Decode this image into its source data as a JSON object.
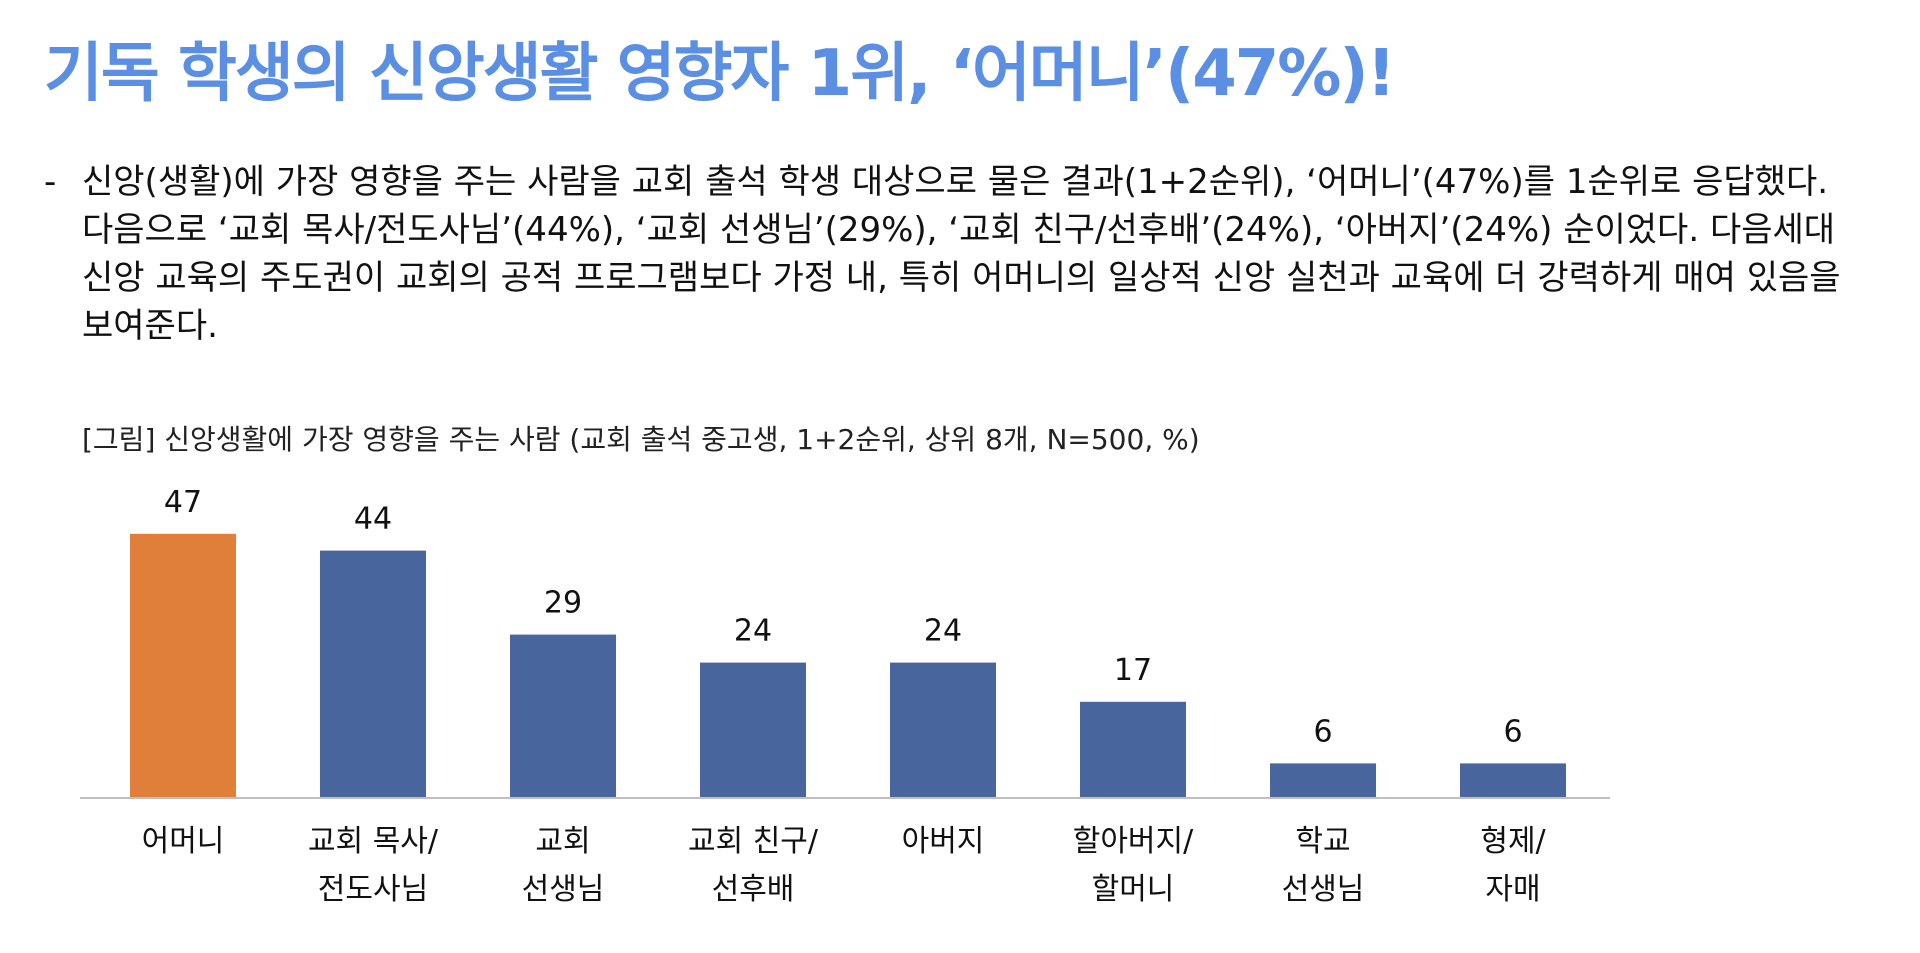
{
  "headline": "기독 학생의 신앙생활 영향자 1위, ‘어머니’(47%)!",
  "body": {
    "bullet": "-",
    "paragraph": "신앙(생활)에 가장 영향을 주는 사람을 교회 출석 학생 대상으로 물은 결과(1+2순위), ‘어머니’(47%)를 1순위로 응답했다. 다음으로 ‘교회 목사/전도사님’(44%), ‘교회 선생님’(29%), ‘교회 친구/선후배’(24%), ‘아버지’(24%) 순이었다. 다음세대 신앙 교육의 주도권이 교회의 공적 프로그램보다 가정 내, 특히 어머니의 일상적 신앙 실천과 교육에 더 강력하게 매여 있음을 보여준다."
  },
  "figure_caption": "[그림] 신앙생활에 가장 영향을 주는 사람 (교회 출석 중고생, 1+2순위, 상위 8개, N=500, %)",
  "colors": {
    "title": "#5b8fe3",
    "highlight_bar": "#e07f3a",
    "bar": "#49659e",
    "baseline": "#bfbfbf"
  },
  "chart_data": {
    "type": "bar",
    "categories": [
      [
        "어머니"
      ],
      [
        "교회 목사/",
        "전도사님"
      ],
      [
        "교회",
        "선생님"
      ],
      [
        "교회 친구/",
        "선후배"
      ],
      [
        "아버지"
      ],
      [
        "할아버지/",
        "할머니"
      ],
      [
        "학교",
        "선생님"
      ],
      [
        "형제/",
        "자매"
      ]
    ],
    "values": [
      47,
      44,
      29,
      24,
      24,
      17,
      6,
      6
    ],
    "highlight_index": 0,
    "ylim": [
      0,
      50
    ],
    "grid": false,
    "legend": false
  }
}
